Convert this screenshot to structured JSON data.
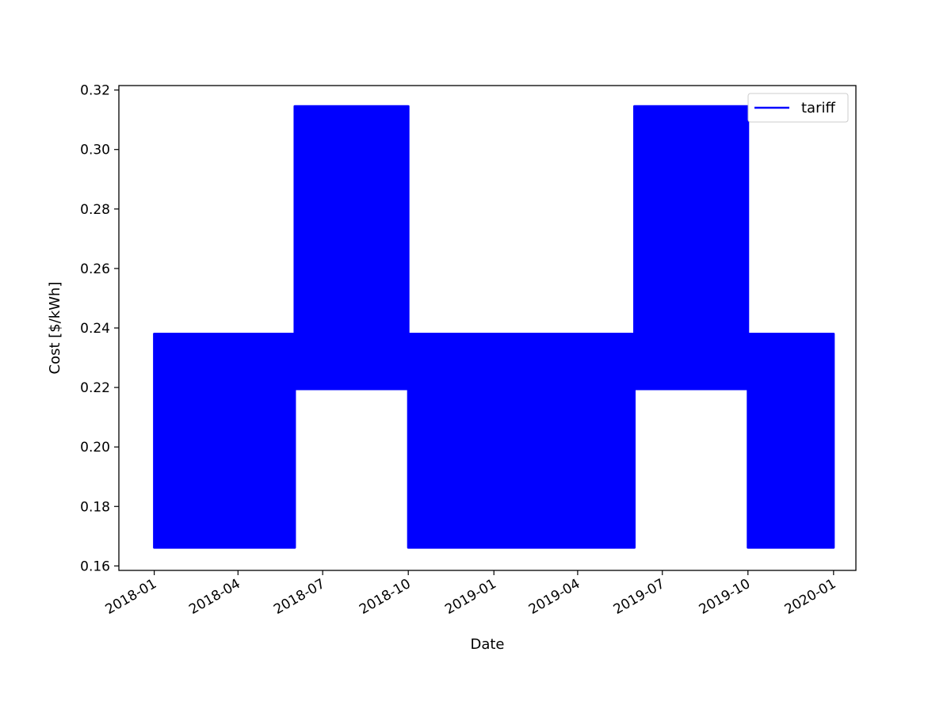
{
  "chart_data": {
    "type": "area",
    "title": "",
    "xlabel": "Date",
    "ylabel": "Cost [$/kWh]",
    "xlim": [
      "2017-11-24",
      "2020-01-25"
    ],
    "ylim": [
      0.1585,
      0.3215
    ],
    "x_ticks": [
      "2018-01",
      "2018-04",
      "2018-07",
      "2018-10",
      "2019-01",
      "2019-04",
      "2019-07",
      "2019-10",
      "2020-01"
    ],
    "y_ticks": [
      0.16,
      0.18,
      0.2,
      0.22,
      0.24,
      0.26,
      0.28,
      0.3,
      0.32
    ],
    "y_tick_labels": [
      "0.16",
      "0.18",
      "0.20",
      "0.22",
      "0.24",
      "0.26",
      "0.28",
      "0.30",
      "0.32"
    ],
    "grid": false,
    "legend": {
      "position": "top-right",
      "entries": [
        "tariff"
      ]
    },
    "color": "#0000ff",
    "series": [
      {
        "name": "tariff",
        "bands": [
          {
            "start": "2018-01-01",
            "end": "2018-06-01",
            "low": 0.1662,
            "high": 0.238
          },
          {
            "start": "2018-06-01",
            "end": "2018-10-01",
            "low": 0.2195,
            "high": 0.3145
          },
          {
            "start": "2018-10-01",
            "end": "2019-06-01",
            "low": 0.1662,
            "high": 0.238
          },
          {
            "start": "2019-06-01",
            "end": "2019-10-01",
            "low": 0.2195,
            "high": 0.3145
          },
          {
            "start": "2019-10-01",
            "end": "2020-01-01",
            "low": 0.1662,
            "high": 0.238
          }
        ]
      }
    ]
  }
}
